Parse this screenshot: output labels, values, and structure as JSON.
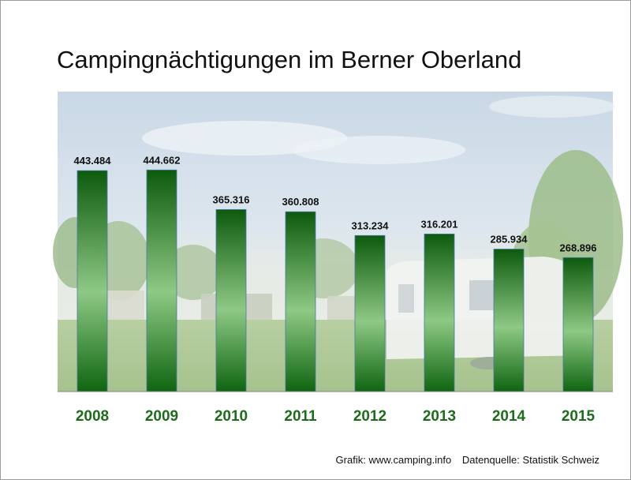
{
  "slide": {
    "title": "Campingnächtigungen im Berner Oberland",
    "credit": "Grafik: www.camping.info",
    "source": "Datenquelle: Statistik Schweiz"
  },
  "chart_data": {
    "type": "bar",
    "title": "Campingnächtigungen im Berner Oberland",
    "xlabel": "",
    "ylabel": "",
    "categories": [
      "2008",
      "2009",
      "2010",
      "2011",
      "2012",
      "2013",
      "2014",
      "2015"
    ],
    "values": [
      443484,
      444662,
      365316,
      360808,
      313234,
      316201,
      285934,
      268896
    ],
    "value_labels": [
      "443.484",
      "444.662",
      "365.316",
      "360.808",
      "313.234",
      "316.201",
      "285.934",
      "268.896"
    ],
    "ylim": [
      0,
      450000
    ],
    "grid": false,
    "legend": "none",
    "colors": {
      "bar_dark": "#0d5a0d",
      "bar_light": "#8ec985",
      "tick": "#1e6b1e"
    }
  }
}
